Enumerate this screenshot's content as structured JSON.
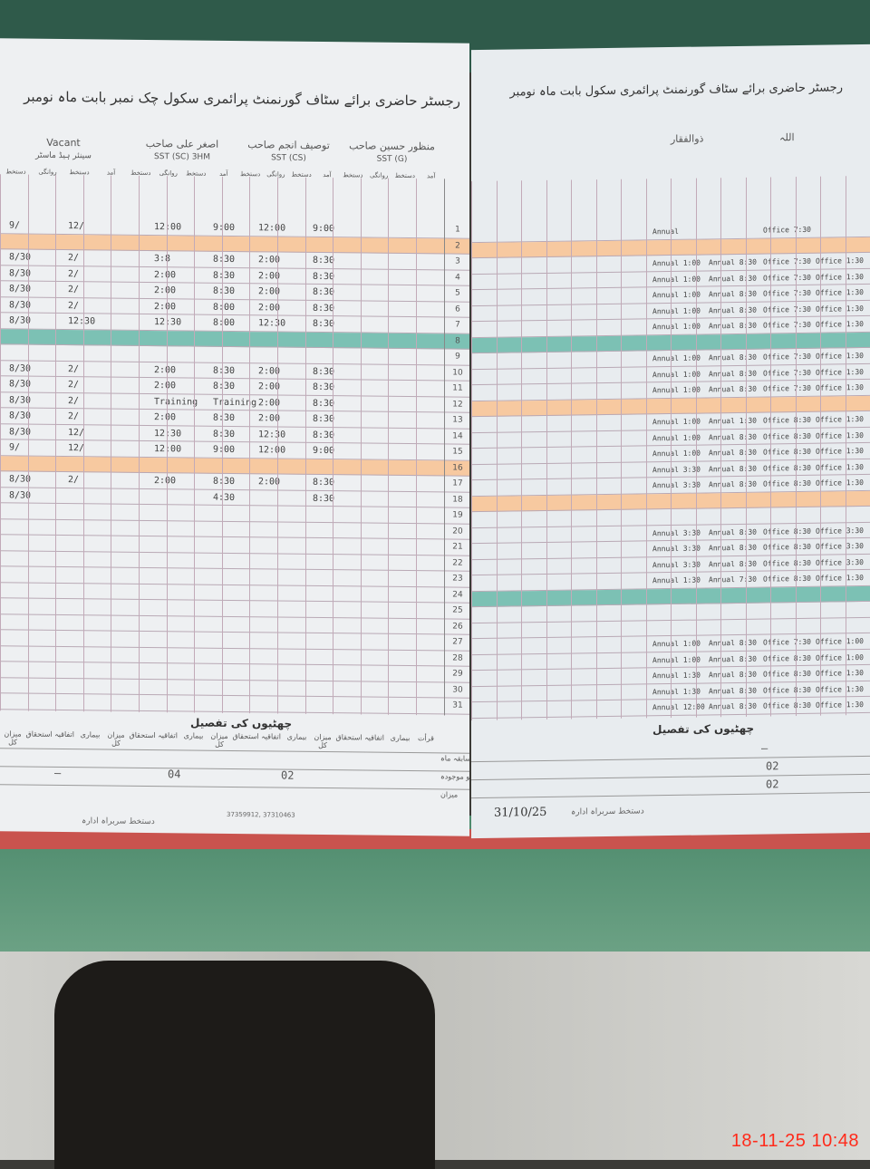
{
  "left_page": {
    "title": "رجسٹر حاضری برائے سٹاف گورنمنٹ پرائمری سکول چک نمبر بابت ماہ نومبر",
    "month": "نومبر",
    "teachers": [
      {
        "name": "منظور حسین صاحب",
        "post": "SST (G)"
      },
      {
        "name": "توصیف انجم صاحب",
        "post": "SST (CS)"
      },
      {
        "name": "اصغر علی صاحب",
        "post": "SST (SC) 3HM"
      },
      {
        "name": "Vacant",
        "post": "سینئر ہیڈ ماسٹر"
      }
    ],
    "subheaders": [
      "آمد",
      "دستخط",
      "روانگی",
      "دستخط"
    ],
    "rows": [
      {
        "n": "1",
        "cells": [
          "9/",
          "12/",
          "12:00",
          "9:00",
          "12:00",
          "9:00"
        ]
      },
      {
        "n": "2",
        "mark": "orange",
        "cells": []
      },
      {
        "n": "3",
        "cells": [
          "8/30",
          "2/",
          "3:8",
          "8:30",
          "2:00",
          "8:30"
        ]
      },
      {
        "n": "4",
        "cells": [
          "8/30",
          "2/",
          "2:00",
          "8:30",
          "2:00",
          "8:30"
        ]
      },
      {
        "n": "5",
        "cells": [
          "8/30",
          "2/",
          "2:00",
          "8:30",
          "2:00",
          "8:30"
        ]
      },
      {
        "n": "6",
        "cells": [
          "8/30",
          "2/",
          "2:00",
          "8:00",
          "2:00",
          "8:30"
        ]
      },
      {
        "n": "7",
        "cells": [
          "8/30",
          "12:30",
          "12:30",
          "8:00",
          "12:30",
          "8:30"
        ]
      },
      {
        "n": "8",
        "mark": "teal",
        "cells": []
      },
      {
        "n": "9",
        "cells": []
      },
      {
        "n": "10",
        "cells": [
          "8/30",
          "2/",
          "2:00",
          "8:30",
          "2:00",
          "8:30"
        ]
      },
      {
        "n": "11",
        "cells": [
          "8/30",
          "2/",
          "2:00",
          "8:30",
          "2:00",
          "8:30"
        ]
      },
      {
        "n": "12",
        "cells": [
          "8/30",
          "2/",
          "Training",
          "Training",
          "2:00",
          "8:30"
        ]
      },
      {
        "n": "13",
        "cells": [
          "8/30",
          "2/",
          "2:00",
          "8:30",
          "2:00",
          "8:30"
        ]
      },
      {
        "n": "14",
        "cells": [
          "8/30",
          "12/",
          "12:30",
          "8:30",
          "12:30",
          "8:30"
        ]
      },
      {
        "n": "15",
        "cells": [
          "9/",
          "12/",
          "12:00",
          "9:00",
          "12:00",
          "9:00"
        ]
      },
      {
        "n": "16",
        "mark": "orange",
        "cells": []
      },
      {
        "n": "17",
        "cells": [
          "8/30",
          "2/",
          "2:00",
          "8:30",
          "2:00",
          "8:30"
        ]
      },
      {
        "n": "18",
        "cells": [
          "8/30",
          "",
          "",
          "4:30",
          "",
          "8:30"
        ]
      }
    ],
    "summary": {
      "title": "چھٹیوں کی تفصیل",
      "headers": [
        "میزان کل",
        "استحقاق",
        "اتفاقیہ",
        "بیماری",
        "میزان کل",
        "استحقاق",
        "اتفاقیہ",
        "بیماری",
        "میزان کل",
        "استحقاق",
        "اتفاقیہ",
        "بیماری",
        "میزان کل",
        "استحقاق",
        "اتفاقیہ",
        "بیماری",
        "قرأت"
      ],
      "row_labels": [
        "سابقہ ماہ",
        "کو موجودہ",
        "میزان"
      ],
      "values": [
        "—",
        "04",
        "02"
      ]
    },
    "printer": "37359912, 37310463",
    "signature_label": "دستخط سربراہ ادارہ"
  },
  "right_page": {
    "title": "رجسٹر حاضری برائے سٹاف گورنمنٹ پرائمری سکول بابت ماہ نومبر",
    "teachers": [
      {
        "name": "ذوالفقار"
      },
      {
        "name": "اللہ"
      }
    ],
    "rows": [
      {
        "n": "1",
        "cells": [
          "Annual",
          "",
          "Office 7:30",
          ""
        ]
      },
      {
        "n": "2",
        "mark": "orange",
        "cells": []
      },
      {
        "n": "3",
        "cells": [
          "Annual 1:00",
          "Annual 8:30",
          "Office 7:30",
          "Office 1:30"
        ]
      },
      {
        "n": "4",
        "cells": [
          "Annual 1:00",
          "Annual 8:30",
          "Office 7:30",
          "Office 1:30"
        ]
      },
      {
        "n": "5",
        "cells": [
          "Annual 1:00",
          "Annual 8:30",
          "Office 7:30",
          "Office 1:30"
        ]
      },
      {
        "n": "6",
        "cells": [
          "Annual 1:00",
          "Annual 8:30",
          "Office 7:30",
          "Office 1:30"
        ]
      },
      {
        "n": "7",
        "cells": [
          "Annual 1:00",
          "Annual 8:30",
          "Office 7:30",
          "Office 1:30"
        ]
      },
      {
        "n": "8",
        "mark": "teal",
        "cells": []
      },
      {
        "n": "9",
        "cells": [
          "Annual 1:00",
          "Annual 8:30",
          "Office 7:30",
          "Office 1:30"
        ]
      },
      {
        "n": "10",
        "cells": [
          "Annual 1:00",
          "Annual 8:30",
          "Office 7:30",
          "Office 1:30"
        ]
      },
      {
        "n": "11",
        "cells": [
          "Annual 1:00",
          "Annual 8:30",
          "Office 7:30",
          "Office 1:30"
        ]
      },
      {
        "n": "12",
        "mark": "orange",
        "cells": []
      },
      {
        "n": "13",
        "cells": [
          "Annual 1:00",
          "Annual 1:30",
          "Office 8:30",
          "Office 1:30"
        ]
      },
      {
        "n": "14",
        "cells": [
          "Annual 1:00",
          "Annual 8:30",
          "Office 8:30",
          "Office 1:30"
        ]
      },
      {
        "n": "15",
        "cells": [
          "Annual 1:00",
          "Annual 8:30",
          "Office 8:30",
          "Office 1:30"
        ]
      },
      {
        "n": "16",
        "cells": [
          "Annual 3:30",
          "Annual 8:30",
          "Office 8:30",
          "Office 1:30"
        ]
      },
      {
        "n": "17",
        "cells": [
          "Annual 3:30",
          "Annual 8:30",
          "Office 8:30",
          "Office 1:30"
        ]
      },
      {
        "n": "18",
        "mark": "orange",
        "cells": []
      },
      {
        "n": "19",
        "cells": []
      },
      {
        "n": "20",
        "cells": [
          "Annual 3:30",
          "Annual 8:30",
          "Office 8:30",
          "Office 3:30"
        ]
      },
      {
        "n": "21",
        "cells": [
          "Annual 3:30",
          "Annual 8:30",
          "Office 8:30",
          "Office 3:30"
        ]
      },
      {
        "n": "22",
        "cells": [
          "Annual 3:30",
          "Annual 8:30",
          "Office 8:30",
          "Office 3:30"
        ]
      },
      {
        "n": "23",
        "cells": [
          "Annual 1:30",
          "Annual 7:30",
          "Office 8:30",
          "Office 1:30"
        ]
      },
      {
        "n": "24",
        "mark": "teal",
        "cells": []
      },
      {
        "n": "25",
        "cells": []
      },
      {
        "n": "26",
        "cells": []
      },
      {
        "n": "27",
        "cells": [
          "Annual 1:00",
          "Annual 8:30",
          "Office 7:30",
          "Office 1:00"
        ]
      },
      {
        "n": "28",
        "cells": [
          "Annual 1:00",
          "Annual 8:30",
          "Office 8:30",
          "Office 1:00"
        ]
      },
      {
        "n": "29",
        "cells": [
          "Annual 1:30",
          "Annual 8:30",
          "Office 8:30",
          "Office 1:30"
        ]
      },
      {
        "n": "30",
        "cells": [
          "Annual 1:30",
          "Annual 8:30",
          "Office 8:30",
          "Office 1:30"
        ]
      },
      {
        "n": "31",
        "cells": [
          "Annual 12:00",
          "Annual 8:30",
          "Office 8:30",
          "Office 1:30"
        ]
      }
    ],
    "summary": {
      "title": "چھٹیوں کی تفصیل",
      "values": [
        "—",
        "02",
        "02"
      ]
    },
    "signature_label": "دستخط سربراہ ادارہ",
    "signature_date": "31/10/25"
  },
  "timestamp": "18-11-25  10:48",
  "colors": {
    "holiday_stripe": "#f7c9a0",
    "sunday_stripe": "#7cc1b4",
    "timestamp": "#ff2a1a"
  }
}
